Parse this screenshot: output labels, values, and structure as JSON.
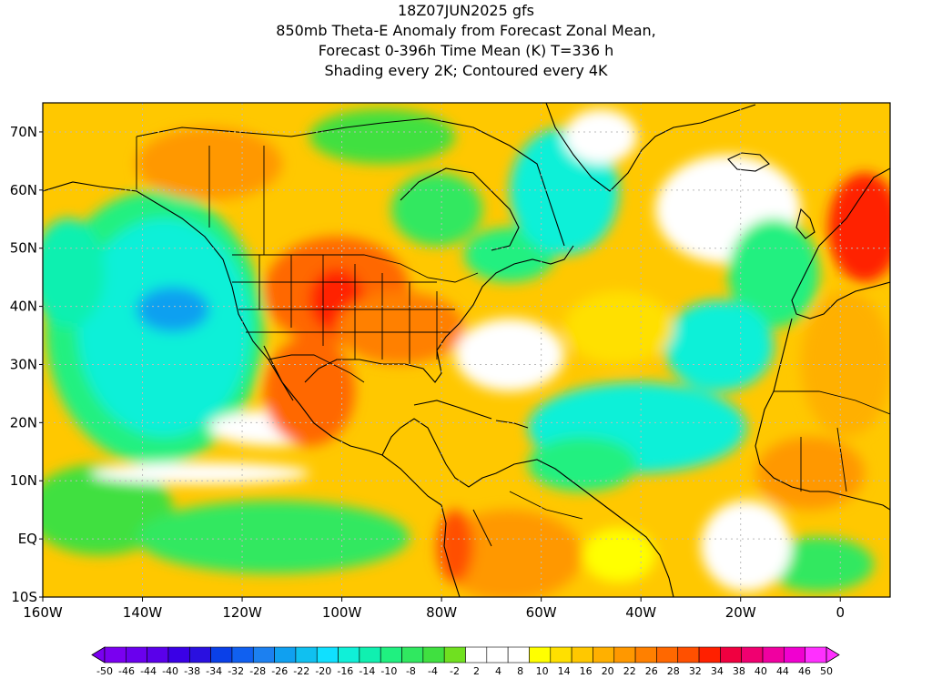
{
  "title": {
    "line1": "18Z07JUN2025 gfs",
    "line2": "850mb Theta-E Anomaly from Forecast Zonal Mean,",
    "line3": "Forecast 0-396h Time Mean (K) T=336 h",
    "line4": "Shading every 2K; Contoured every 4K"
  },
  "map": {
    "lon_range": [
      -160,
      10
    ],
    "lat_range": [
      -10,
      75
    ],
    "lat_labels": [
      "70N",
      "60N",
      "50N",
      "40N",
      "30N",
      "20N",
      "10N",
      "EQ",
      "10S"
    ],
    "lat_values": [
      70,
      60,
      50,
      40,
      30,
      20,
      10,
      0,
      -10
    ],
    "lon_labels": [
      "160W",
      "140W",
      "120W",
      "100W",
      "80W",
      "60W",
      "40W",
      "20W",
      "0"
    ],
    "lon_values": [
      -160,
      -140,
      -120,
      -100,
      -80,
      -60,
      -40,
      -20,
      0
    ]
  },
  "colorbar": {
    "labels": [
      "-50",
      "-46",
      "-44",
      "-40",
      "-38",
      "-34",
      "-32",
      "-28",
      "-26",
      "-22",
      "-20",
      "-16",
      "-14",
      "-10",
      "-8",
      "-4",
      "-2",
      "2",
      "4",
      "8",
      "10",
      "14",
      "16",
      "20",
      "22",
      "26",
      "28",
      "32",
      "34",
      "38",
      "40",
      "44",
      "46",
      "50"
    ],
    "colors": [
      "#7a00f0",
      "#6a00ee",
      "#5a00ea",
      "#3a00e6",
      "#2a10e0",
      "#0a40e8",
      "#1060f0",
      "#1c80f0",
      "#10a0f0",
      "#10c0f0",
      "#10e0ff",
      "#10f0d8",
      "#10f0b0",
      "#20f080",
      "#30e860",
      "#40e040",
      "#70e020",
      "#ffffff",
      "#ffffff",
      "#ffffff",
      "#ffff00",
      "#ffe000",
      "#ffc800",
      "#ffb000",
      "#ff9800",
      "#ff8000",
      "#ff6800",
      "#ff5000",
      "#ff2000",
      "#f00040",
      "#f00070",
      "#f000a0",
      "#f000d0",
      "#ff30ff"
    ],
    "accent_colors": {
      "land_outline": "#000000",
      "grid": "#bbbbbb"
    }
  }
}
